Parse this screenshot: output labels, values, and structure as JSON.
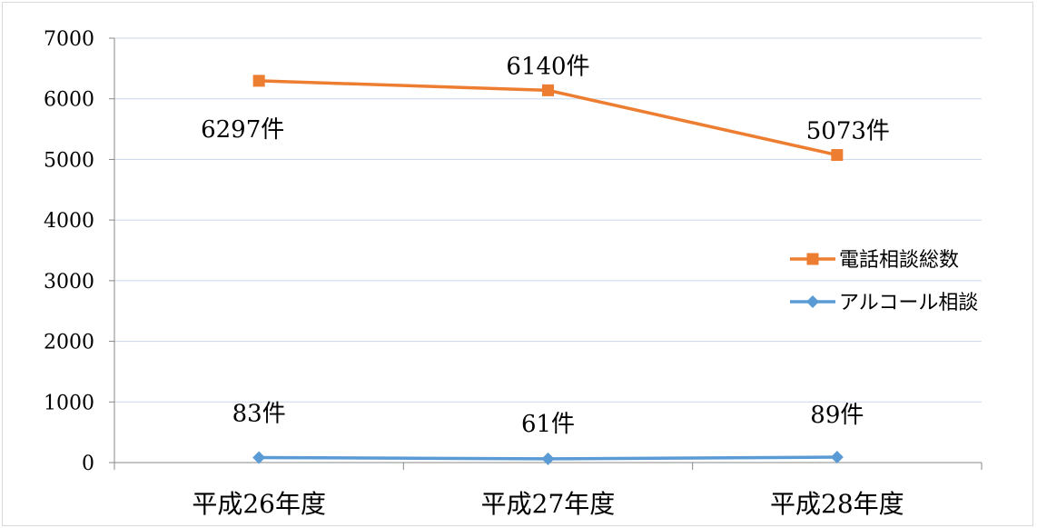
{
  "chart_data": {
    "type": "line",
    "categories": [
      "平成26年度",
      "平成27年度",
      "平成28年度"
    ],
    "ylim": [
      0,
      7000
    ],
    "yticks": [
      0,
      1000,
      2000,
      3000,
      4000,
      5000,
      6000,
      7000
    ],
    "grid": true,
    "legend_position": "right",
    "series": [
      {
        "name": "電話相談総数",
        "values": [
          6297,
          6140,
          5073
        ],
        "labels": [
          "6297件",
          "6140件",
          "5073件"
        ],
        "color": "#ED7D31",
        "marker": "square"
      },
      {
        "name": "アルコール相談",
        "values": [
          83,
          61,
          89
        ],
        "labels": [
          "83件",
          "61件",
          "89件"
        ],
        "color": "#5B9BD5",
        "marker": "diamond"
      }
    ]
  }
}
